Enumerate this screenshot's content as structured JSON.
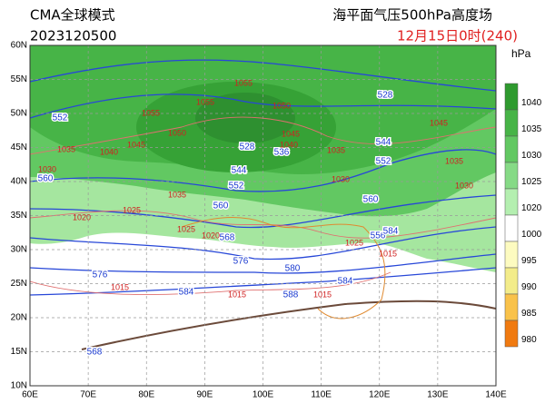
{
  "header": {
    "model": "CMA全球模式",
    "run": "2023120500",
    "title": "海平面气压500hPa高度场",
    "valid_time": "12月15日0时(240)"
  },
  "colorbar": {
    "unit": "hPa",
    "labels": [
      "1040",
      "1035",
      "1030",
      "1025",
      "1020",
      "1000",
      "995",
      "990",
      "985",
      "980"
    ],
    "colors": [
      "#2e9a2e",
      "#47b447",
      "#62c862",
      "#86da86",
      "#b4efb0",
      "#ffffff",
      "#fdfbc0",
      "#f3ec8a",
      "#f9c24a",
      "#f07a10"
    ]
  },
  "map": {
    "lat_labels": [
      "60N",
      "55N",
      "50N",
      "45N",
      "40N",
      "35N",
      "30N",
      "25N",
      "20N",
      "15N",
      "10N"
    ],
    "lon_labels": [
      "60E",
      "70E",
      "80E",
      "90E",
      "100E",
      "110E",
      "120E",
      "130E",
      "140E"
    ],
    "height_labels": [
      "552",
      "560",
      "560",
      "568",
      "576",
      "584",
      "580",
      "576",
      "584",
      "588",
      "528",
      "544",
      "552",
      "560",
      "536",
      "544",
      "552",
      "528",
      "568",
      "556",
      "584"
    ],
    "pressure_labels": [
      "1035",
      "1030",
      "1040",
      "1045",
      "1050",
      "1055",
      "1055",
      "1055",
      "1050",
      "1045",
      "1040",
      "1035",
      "1030",
      "1035",
      "1025",
      "1020",
      "1025",
      "1020",
      "1025",
      "1015",
      "1015",
      "1015",
      "1045",
      "1035",
      "1030",
      "1015"
    ]
  }
}
